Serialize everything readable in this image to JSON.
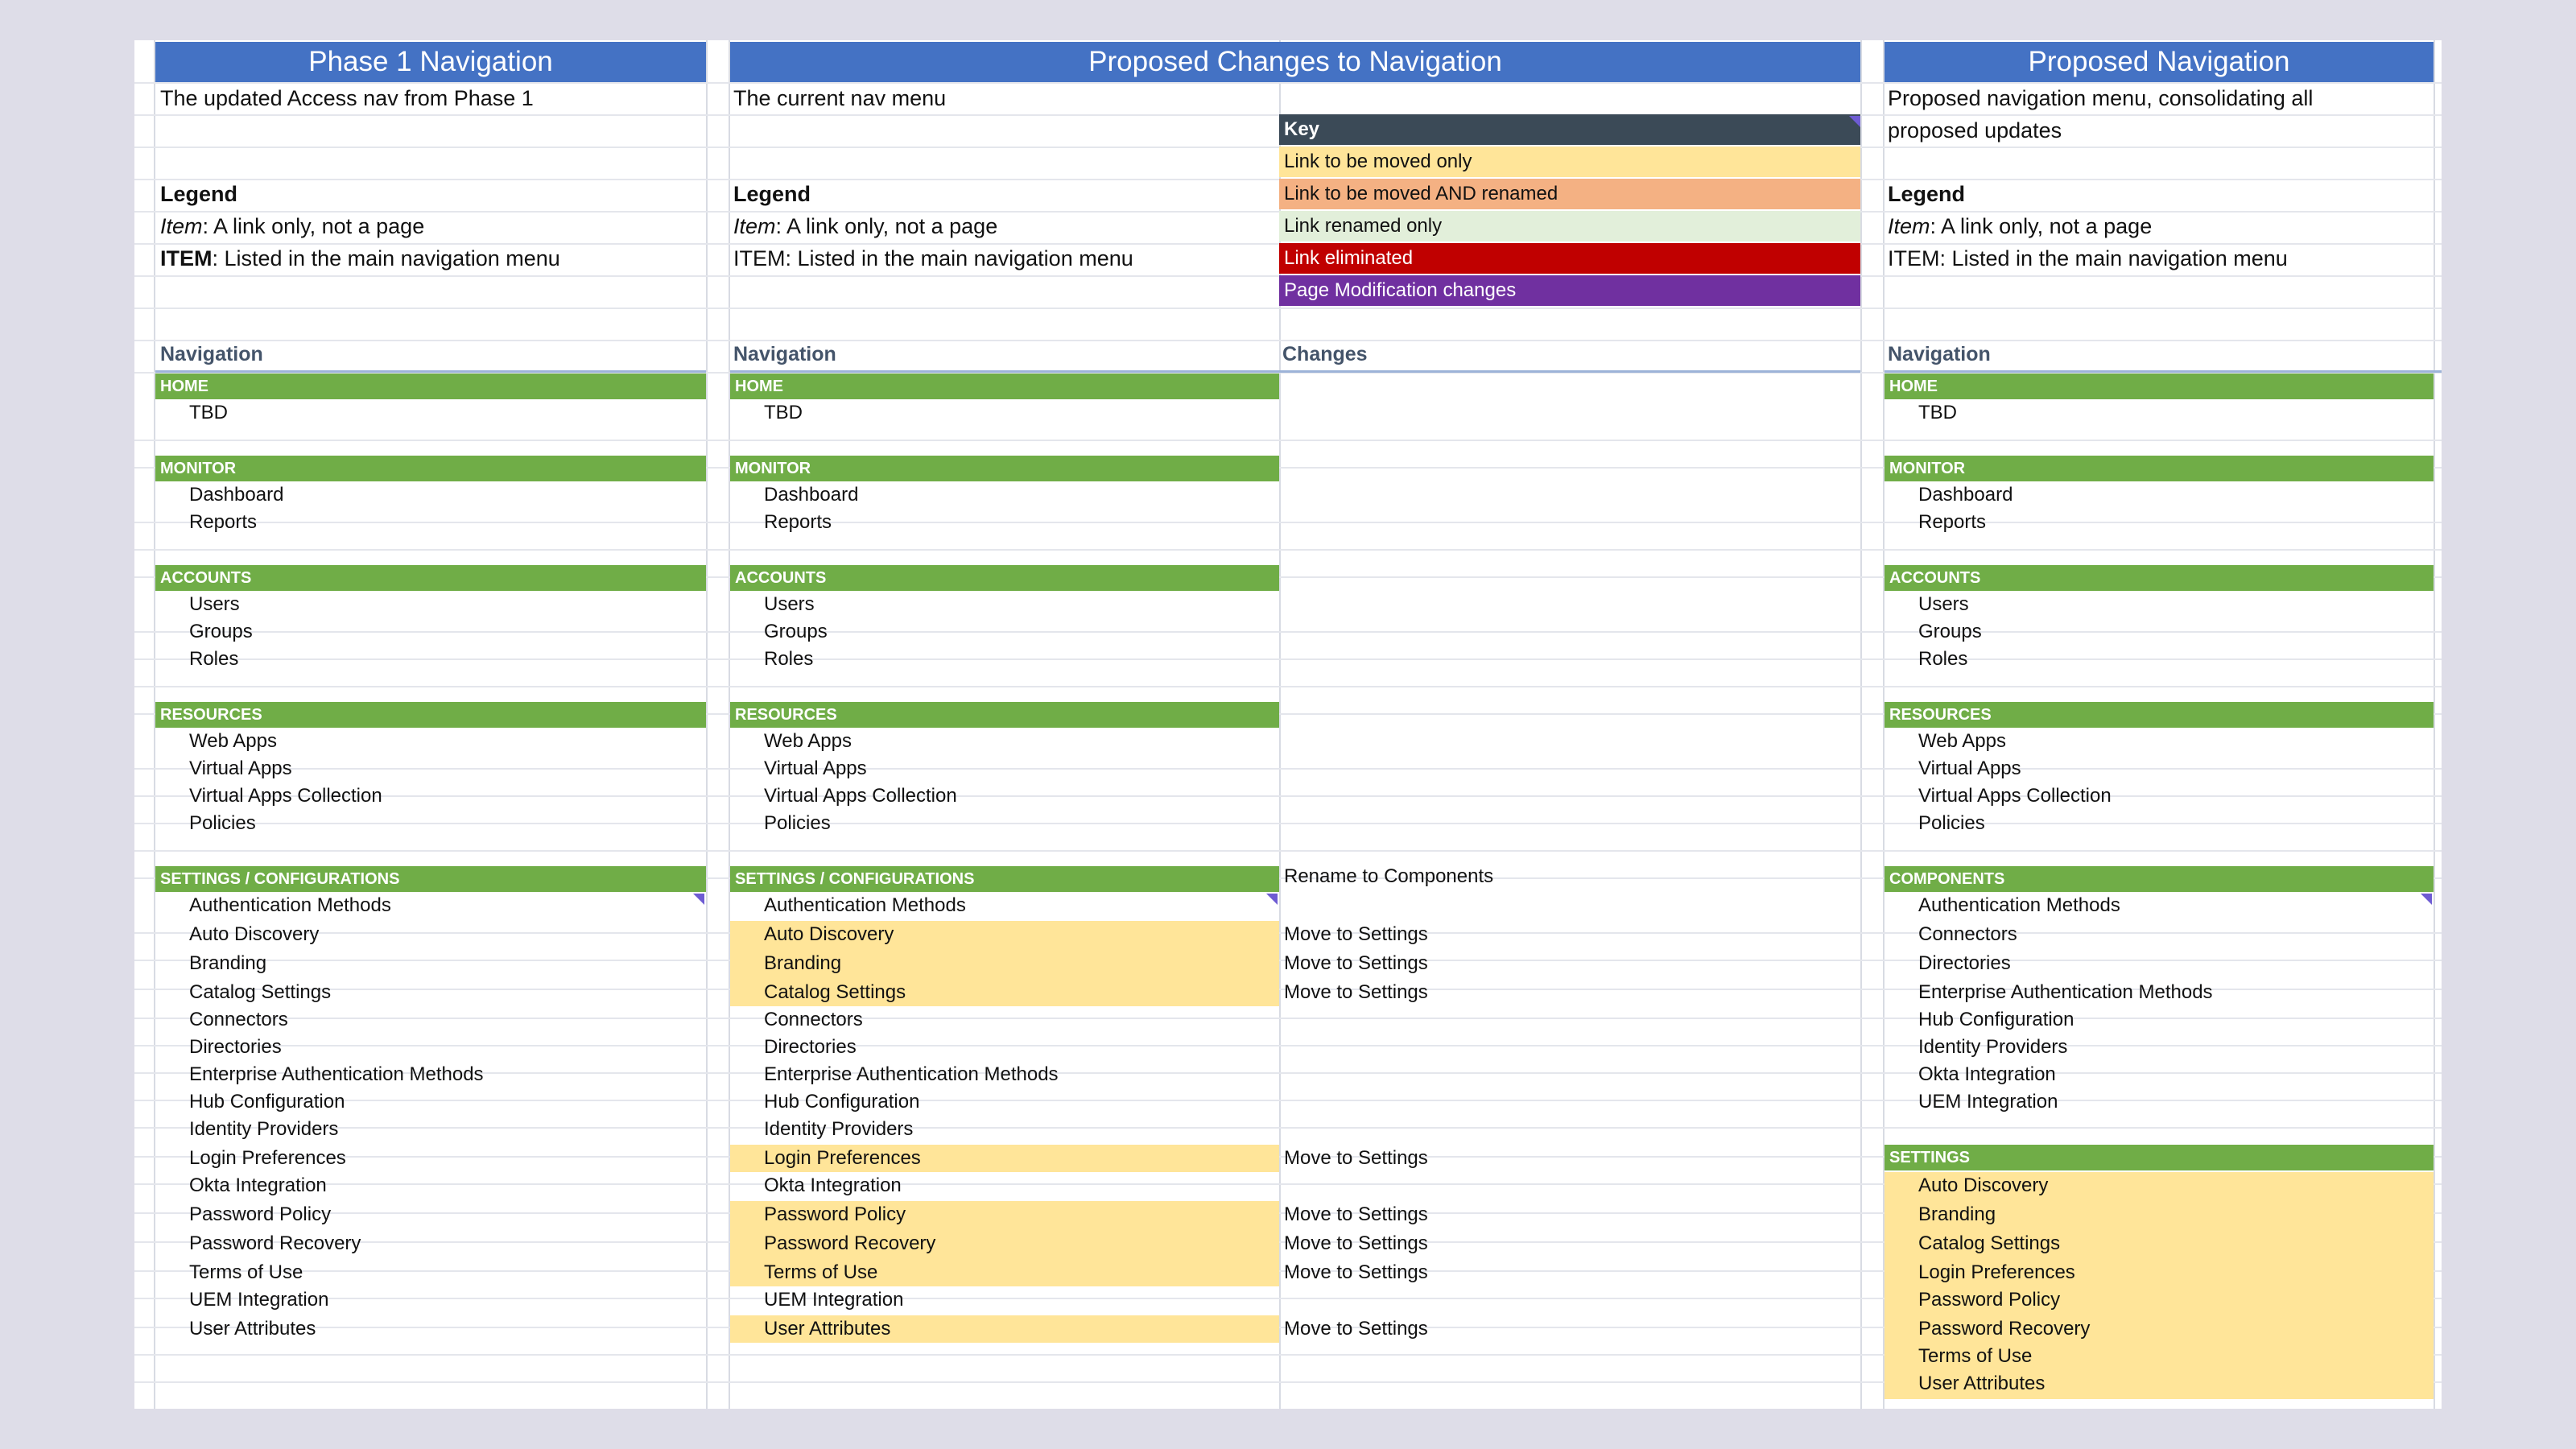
{
  "columns": {
    "phase1": {
      "title": "Phase 1 Navigation",
      "description": "The updated Access nav from Phase 1",
      "legend": {
        "heading": "Legend",
        "item_term": "Item",
        "item_desc": ": A link only, not a page",
        "ITEM_term": "ITEM",
        "ITEM_desc": ": Listed in the main navigation menu"
      },
      "nav_heading": "Navigation"
    },
    "proposed_changes": {
      "title": "Proposed Changes to Navigation",
      "description": "The current nav menu",
      "legend": {
        "heading": "Legend",
        "item_term": "Item",
        "item_desc": ": A link only, not a page",
        "ITEM_line": "ITEM: Listed in the main navigation menu"
      },
      "nav_heading": "Navigation",
      "changes_heading": "Changes"
    },
    "proposed": {
      "title": "Proposed Navigation",
      "description_line1": "Proposed navigation menu, consolidating all",
      "description_line2": "proposed updates",
      "legend": {
        "heading": "Legend",
        "item_term": "Item",
        "item_desc": ": A link only, not a page",
        "ITEM_line": "ITEM: Listed in the main navigation menu"
      },
      "nav_heading": "Navigation"
    }
  },
  "key": {
    "heading": "Key",
    "entries": [
      {
        "label": "Link to be moved only",
        "color": "#ffe599"
      },
      {
        "label": "Link to be moved AND renamed",
        "color": "#f4b183"
      },
      {
        "label": "Link renamed only",
        "color": "#e2efda"
      },
      {
        "label": "Link eliminated",
        "color": "#c00000"
      },
      {
        "label": "Page Modification changes",
        "color": "#7030a0"
      }
    ]
  },
  "sections": {
    "home": "HOME",
    "monitor": "MONITOR",
    "accounts": "ACCOUNTS",
    "resources": "RESOURCES",
    "settings_config": "SETTINGS / CONFIGURATIONS",
    "components": "COMPONENTS",
    "settings": "SETTINGS"
  },
  "items": {
    "tbd": "TBD",
    "dashboard": "Dashboard",
    "reports": "Reports",
    "users": "Users",
    "groups": "Groups",
    "roles": "Roles",
    "web_apps": "Web Apps",
    "virtual_apps": "Virtual Apps",
    "virtual_apps_collection": "Virtual Apps Collection",
    "policies": "Policies",
    "authentication_methods": "Authentication Methods",
    "auto_discovery": "Auto Discovery",
    "branding": "Branding",
    "catalog_settings": "Catalog Settings",
    "connectors": "Connectors",
    "directories": "Directories",
    "enterprise_auth_methods": "Enterprise Authentication Methods",
    "hub_configuration": "Hub Configuration",
    "identity_providers": "Identity Providers",
    "login_preferences": "Login Preferences",
    "okta_integration": "Okta Integration",
    "password_policy": "Password Policy",
    "password_recovery": "Password Recovery",
    "terms_of_use": "Terms of Use",
    "uem_integration": "UEM Integration",
    "user_attributes": "User Attributes"
  },
  "changes": {
    "rename_components": "Rename to Components",
    "move_to_settings": "Move to Settings"
  },
  "colors": {
    "title_bar": "#4472c4",
    "section_bar": "#70ad47",
    "highlight": "#ffe599",
    "key_header": "#3b4a57"
  }
}
